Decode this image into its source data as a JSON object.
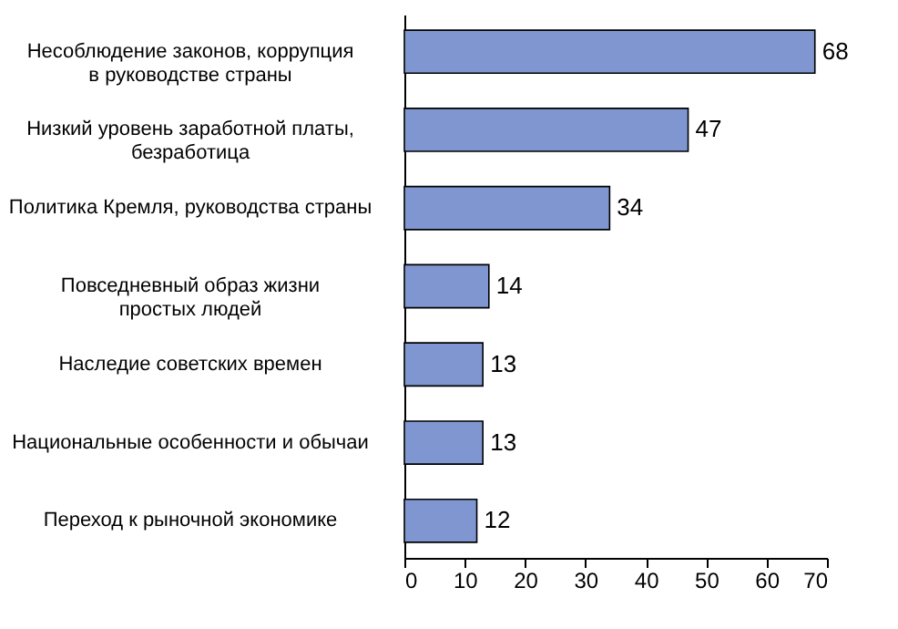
{
  "chart_data": {
    "type": "bar",
    "orientation": "horizontal",
    "categories": [
      "Несоблюдение законов, коррупция\nв руководстве страны",
      "Низкий уровень заработной платы,\nбезработица",
      "Политика Кремля, руководства страны",
      "Повседневный образ жизни\nпростых  людей",
      "Наследие советских времен",
      "Национальные особенности и обычаи",
      "Переход к рыночной экономике"
    ],
    "values": [
      68,
      47,
      34,
      14,
      13,
      13,
      12
    ],
    "color": "#7f96d0",
    "xlim": [
      0,
      70
    ],
    "xticks": [
      0,
      10,
      20,
      30,
      40,
      50,
      60,
      70
    ],
    "data_labels": true,
    "grid": false,
    "legend": false
  }
}
